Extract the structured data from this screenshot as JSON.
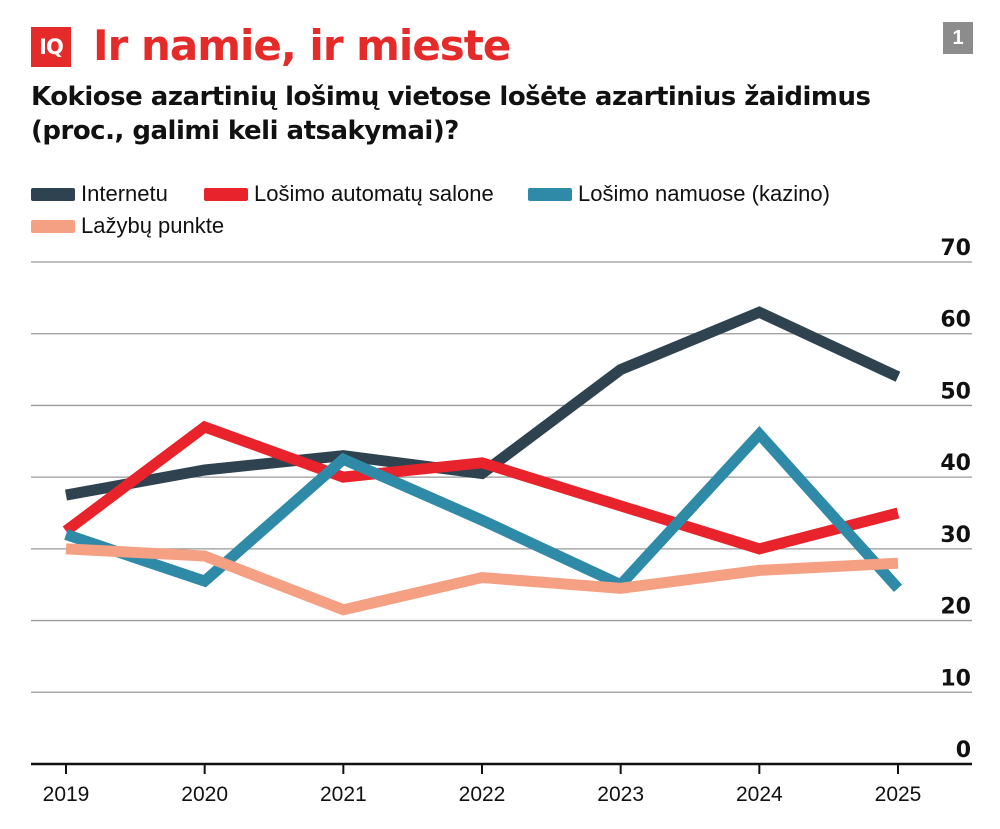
{
  "header": {
    "logo_text": "IQ",
    "title": "Ir namie, ir mieste",
    "subtitle_line1": "Kokiose azartinių lošimų vietose lošėte azartinius žaidimus",
    "subtitle_line2": "(proc., galimi keli atsakymai)?",
    "page_number": "1"
  },
  "colors": {
    "brand": "#e52a2a",
    "grid": "#999999",
    "axis": "#111111"
  },
  "chart_data": {
    "type": "line",
    "x": [
      "2019",
      "2020",
      "2021",
      "2022",
      "2023",
      "2024",
      "2025"
    ],
    "ylim": [
      0,
      70
    ],
    "yticks": [
      "0",
      "10",
      "20",
      "30",
      "40",
      "50",
      "60",
      "70"
    ],
    "grid": true,
    "legend_position": "top-left",
    "series": [
      {
        "name": "Internetu",
        "color": "#2e4250",
        "values": [
          37.5,
          41,
          43,
          40.5,
          55,
          63,
          54
        ]
      },
      {
        "name": "Lošimo automatų salone",
        "color": "#e8232c",
        "values": [
          32.5,
          47,
          40,
          42,
          36,
          30,
          35
        ]
      },
      {
        "name": "Lošimo namuose (kazino)",
        "color": "#2f8aa8",
        "values": [
          32,
          25.5,
          42.5,
          34,
          25,
          46,
          24.5
        ]
      },
      {
        "name": "Lažybų punkte",
        "color": "#f5a083",
        "values": [
          30,
          29,
          21.5,
          26,
          24.5,
          27,
          28
        ]
      }
    ]
  }
}
